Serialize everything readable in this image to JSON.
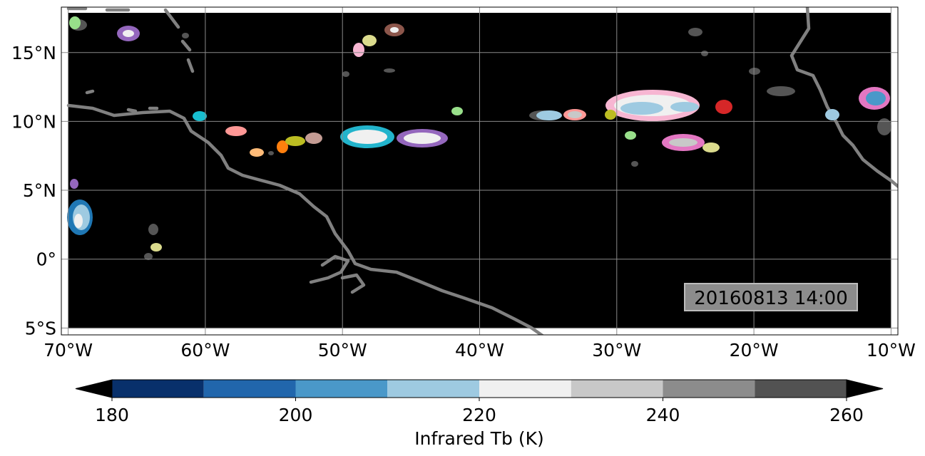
{
  "map": {
    "extent": {
      "lon_min": -70.5,
      "lon_max": -9.5,
      "lat_min": -5.5,
      "lat_max": 18.3
    },
    "lon_ticks": [
      -70,
      -60,
      -50,
      -40,
      -30,
      -20,
      -10
    ],
    "lon_tick_labels": [
      "70°W",
      "60°W",
      "50°W",
      "40°W",
      "30°W",
      "20°W",
      "10°W"
    ],
    "lat_ticks": [
      15,
      10,
      5,
      0,
      -5
    ],
    "lat_tick_labels": [
      "15°N",
      "10°N",
      "5°N",
      "0°",
      "5°S"
    ],
    "timestamp": "20160813 14:00",
    "background_color": "#000000",
    "coastline_color": "#808080",
    "gridlines": true
  },
  "colorbar": {
    "label": "Infrared Tb (K)",
    "levels": [
      180,
      190,
      200,
      210,
      220,
      230,
      240,
      250,
      260
    ],
    "tick_values": [
      180,
      200,
      220,
      240,
      260
    ],
    "tick_labels": [
      "180",
      "200",
      "220",
      "240",
      "260"
    ],
    "colors": [
      "#08306b",
      "#2166ac",
      "#4a98c9",
      "#9ecae1",
      "#f0f0f0",
      "#c8c8c8",
      "#8c8c8c",
      "#525252"
    ],
    "extend": "both"
  }
}
